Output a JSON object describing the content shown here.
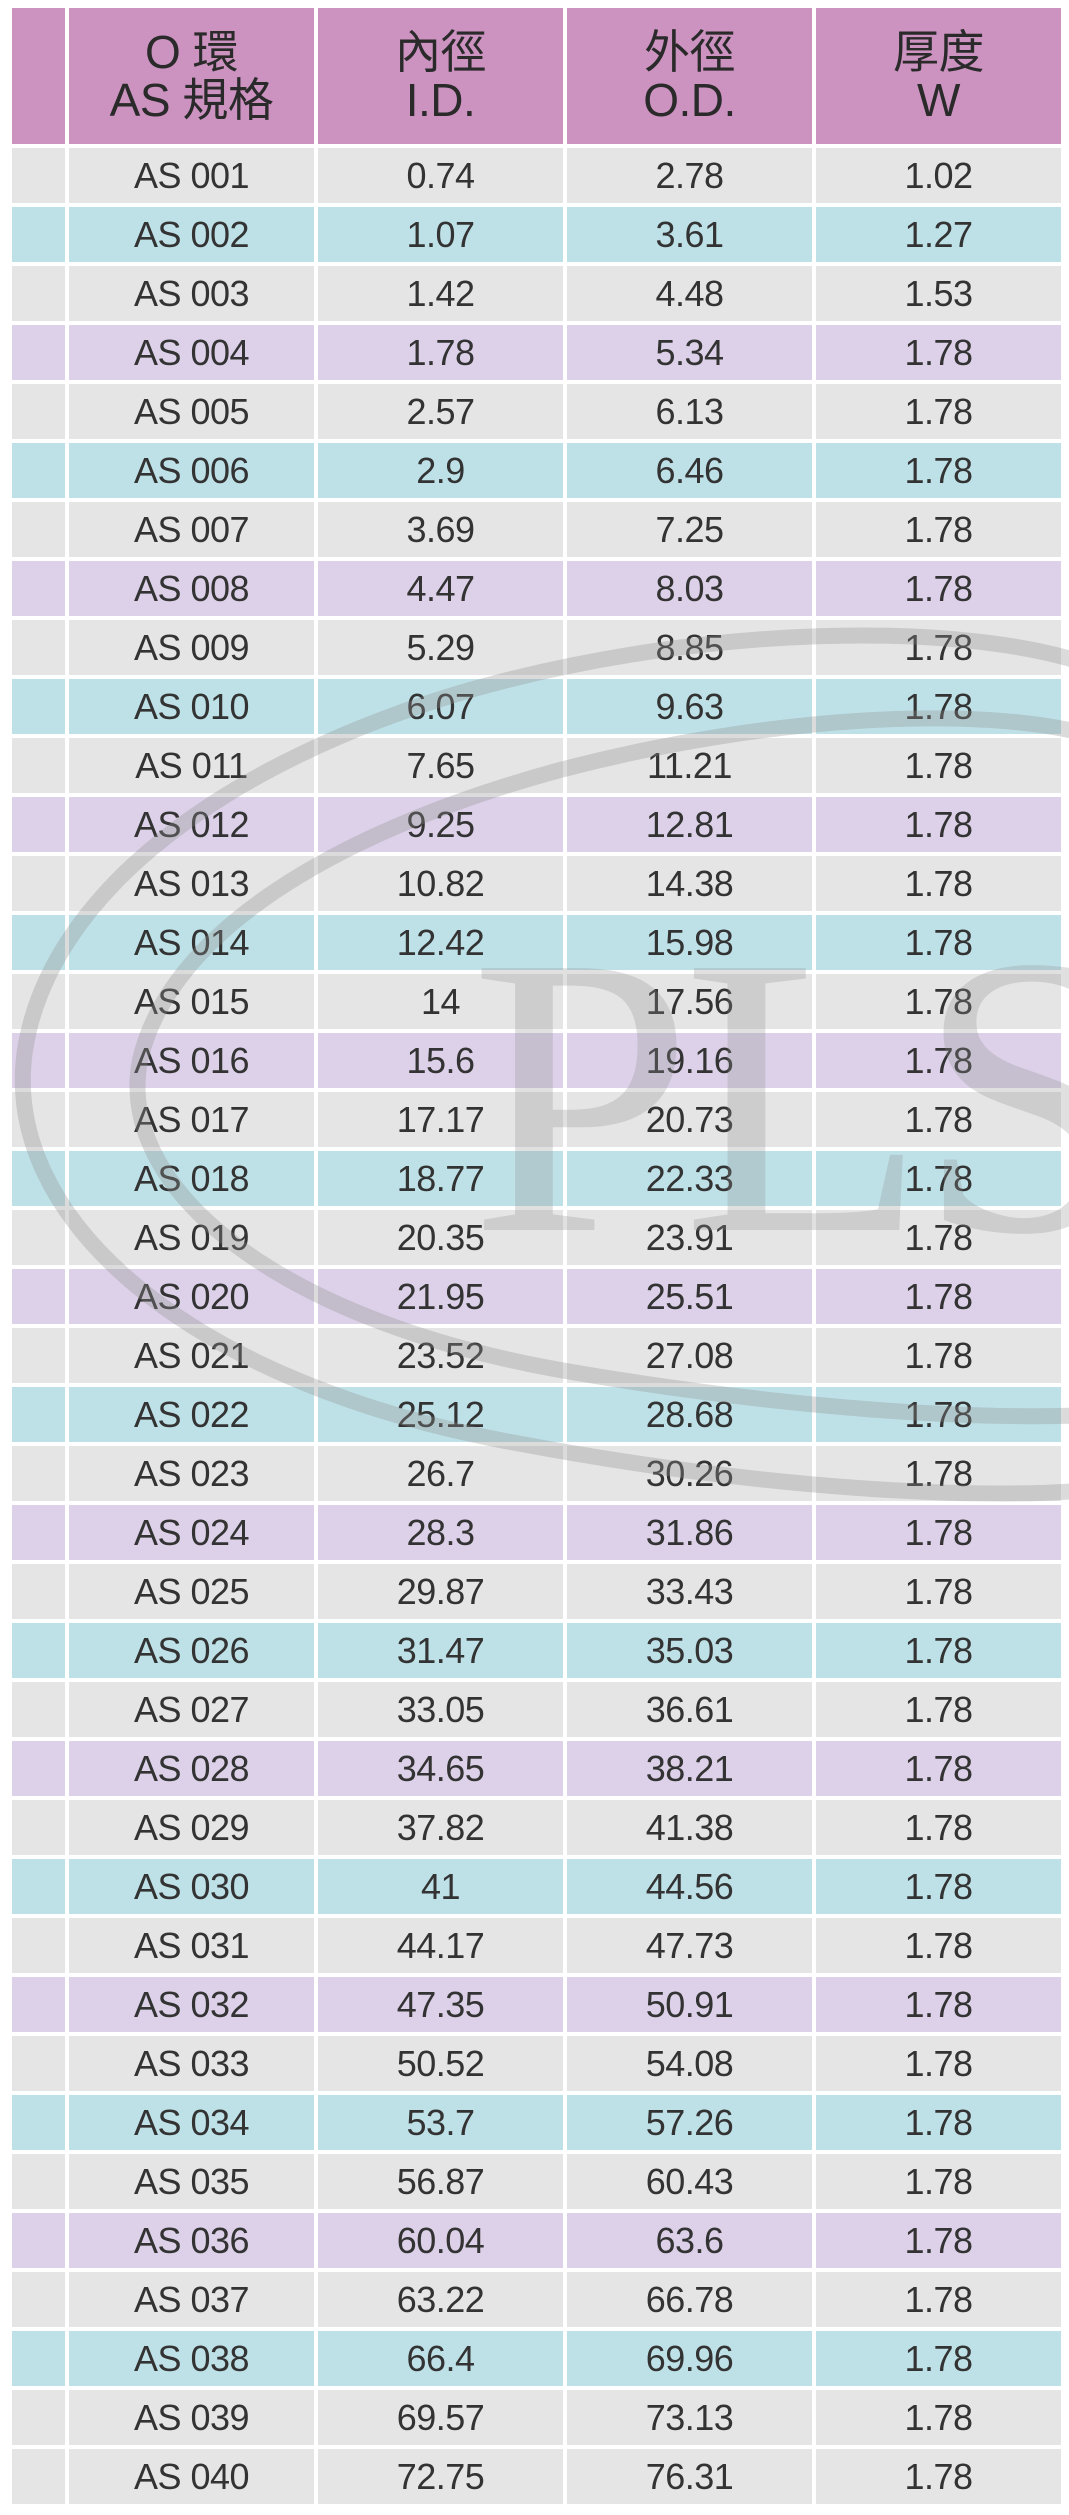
{
  "colors": {
    "header": "#cc93c1",
    "gray": "#e5e5e5",
    "cyan": "#bee1e8",
    "lavender": "#dcd1e8",
    "watermark": "#8f8f8f"
  },
  "watermark": {
    "text": "PLS"
  },
  "header": {
    "col1_line1": "O 環",
    "col1_line2": "AS 規格",
    "col2_line1": "內徑",
    "col2_line2": "I.D.",
    "col3_line1": "外徑",
    "col3_line2": "O.D.",
    "col4_line1": "厚度",
    "col4_line2": "W"
  },
  "rows": [
    {
      "as": "AS 001",
      "id": "0.74",
      "od": "2.78",
      "w": "1.02",
      "shade": "gray"
    },
    {
      "as": "AS 002",
      "id": "1.07",
      "od": "3.61",
      "w": "1.27",
      "shade": "cyan"
    },
    {
      "as": "AS 003",
      "id": "1.42",
      "od": "4.48",
      "w": "1.53",
      "shade": "gray"
    },
    {
      "as": "AS 004",
      "id": "1.78",
      "od": "5.34",
      "w": "1.78",
      "shade": "lavender"
    },
    {
      "as": "AS 005",
      "id": "2.57",
      "od": "6.13",
      "w": "1.78",
      "shade": "gray"
    },
    {
      "as": "AS 006",
      "id": "2.9",
      "od": "6.46",
      "w": "1.78",
      "shade": "cyan"
    },
    {
      "as": "AS 007",
      "id": "3.69",
      "od": "7.25",
      "w": "1.78",
      "shade": "gray"
    },
    {
      "as": "AS 008",
      "id": "4.47",
      "od": "8.03",
      "w": "1.78",
      "shade": "lavender"
    },
    {
      "as": "AS 009",
      "id": "5.29",
      "od": "8.85",
      "w": "1.78",
      "shade": "gray"
    },
    {
      "as": "AS 010",
      "id": "6.07",
      "od": "9.63",
      "w": "1.78",
      "shade": "cyan"
    },
    {
      "as": "AS 011",
      "id": "7.65",
      "od": "11.21",
      "w": "1.78",
      "shade": "gray"
    },
    {
      "as": "AS 012",
      "id": "9.25",
      "od": "12.81",
      "w": "1.78",
      "shade": "lavender"
    },
    {
      "as": "AS 013",
      "id": "10.82",
      "od": "14.38",
      "w": "1.78",
      "shade": "gray"
    },
    {
      "as": "AS 014",
      "id": "12.42",
      "od": "15.98",
      "w": "1.78",
      "shade": "cyan"
    },
    {
      "as": "AS 015",
      "id": "14",
      "od": "17.56",
      "w": "1.78",
      "shade": "gray"
    },
    {
      "as": "AS 016",
      "id": "15.6",
      "od": "19.16",
      "w": "1.78",
      "shade": "lavender"
    },
    {
      "as": "AS 017",
      "id": "17.17",
      "od": "20.73",
      "w": "1.78",
      "shade": "gray"
    },
    {
      "as": "AS 018",
      "id": "18.77",
      "od": "22.33",
      "w": "1.78",
      "shade": "cyan"
    },
    {
      "as": "AS 019",
      "id": "20.35",
      "od": "23.91",
      "w": "1.78",
      "shade": "gray"
    },
    {
      "as": "AS 020",
      "id": "21.95",
      "od": "25.51",
      "w": "1.78",
      "shade": "lavender"
    },
    {
      "as": "AS 021",
      "id": "23.52",
      "od": "27.08",
      "w": "1.78",
      "shade": "gray"
    },
    {
      "as": "AS 022",
      "id": "25.12",
      "od": "28.68",
      "w": "1.78",
      "shade": "cyan"
    },
    {
      "as": "AS 023",
      "id": "26.7",
      "od": "30.26",
      "w": "1.78",
      "shade": "gray"
    },
    {
      "as": "AS 024",
      "id": "28.3",
      "od": "31.86",
      "w": "1.78",
      "shade": "lavender"
    },
    {
      "as": "AS 025",
      "id": "29.87",
      "od": "33.43",
      "w": "1.78",
      "shade": "gray"
    },
    {
      "as": "AS 026",
      "id": "31.47",
      "od": "35.03",
      "w": "1.78",
      "shade": "cyan"
    },
    {
      "as": "AS 027",
      "id": "33.05",
      "od": "36.61",
      "w": "1.78",
      "shade": "gray"
    },
    {
      "as": "AS 028",
      "id": "34.65",
      "od": "38.21",
      "w": "1.78",
      "shade": "lavender"
    },
    {
      "as": "AS 029",
      "id": "37.82",
      "od": "41.38",
      "w": "1.78",
      "shade": "gray"
    },
    {
      "as": "AS 030",
      "id": "41",
      "od": "44.56",
      "w": "1.78",
      "shade": "cyan"
    },
    {
      "as": "AS 031",
      "id": "44.17",
      "od": "47.73",
      "w": "1.78",
      "shade": "gray"
    },
    {
      "as": "AS 032",
      "id": "47.35",
      "od": "50.91",
      "w": "1.78",
      "shade": "lavender"
    },
    {
      "as": "AS 033",
      "id": "50.52",
      "od": "54.08",
      "w": "1.78",
      "shade": "gray"
    },
    {
      "as": "AS 034",
      "id": "53.7",
      "od": "57.26",
      "w": "1.78",
      "shade": "cyan"
    },
    {
      "as": "AS 035",
      "id": "56.87",
      "od": "60.43",
      "w": "1.78",
      "shade": "gray"
    },
    {
      "as": "AS 036",
      "id": "60.04",
      "od": "63.6",
      "w": "1.78",
      "shade": "lavender"
    },
    {
      "as": "AS 037",
      "id": "63.22",
      "od": "66.78",
      "w": "1.78",
      "shade": "gray"
    },
    {
      "as": "AS 038",
      "id": "66.4",
      "od": "69.96",
      "w": "1.78",
      "shade": "cyan"
    },
    {
      "as": "AS 039",
      "id": "69.57",
      "od": "73.13",
      "w": "1.78",
      "shade": "gray"
    },
    {
      "as": "AS 040",
      "id": "72.75",
      "od": "76.31",
      "w": "1.78",
      "shade": "gray"
    }
  ]
}
